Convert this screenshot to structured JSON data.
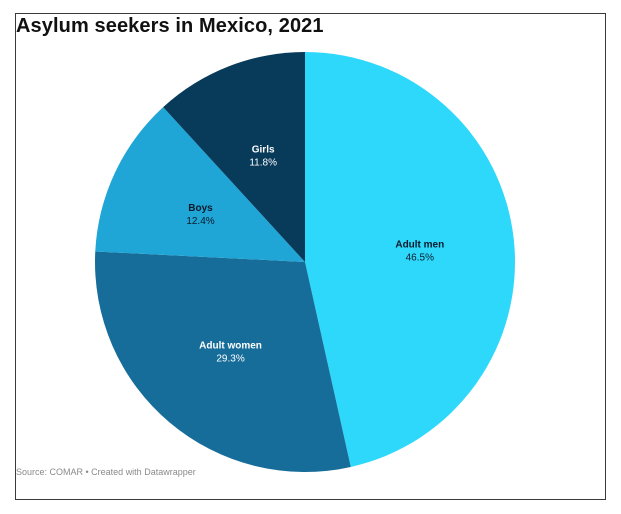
{
  "chart_data": {
    "type": "pie",
    "title": "Asylum seekers in Mexico, 2021",
    "slices": [
      {
        "label": "Adult men",
        "value": 46.5,
        "display": "46.5%",
        "color": "#2ed8fb",
        "text_color": "#0a1a2a"
      },
      {
        "label": "Adult women",
        "value": 29.3,
        "display": "29.3%",
        "color": "#176d99",
        "text_color": "#ffffff"
      },
      {
        "label": "Boys",
        "value": 12.4,
        "display": "12.4%",
        "color": "#1fa5d6",
        "text_color": "#0a1a2a"
      },
      {
        "label": "Girls",
        "value": 11.8,
        "display": "11.8%",
        "color": "#083a5a",
        "text_color": "#ffffff"
      }
    ]
  },
  "footer": {
    "source": "Source: COMAR • Created with Datawrapper"
  }
}
